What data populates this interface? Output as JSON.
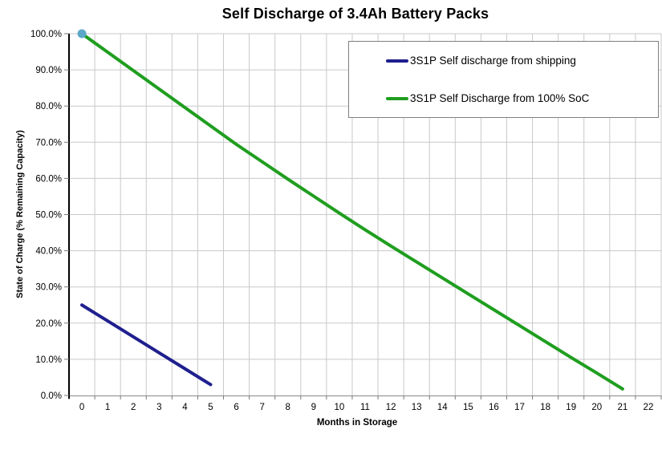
{
  "chart_data": {
    "type": "line",
    "title": "Self Discharge of 3.4Ah Battery Packs",
    "xlabel": "Months in Storage",
    "ylabel": "State of Charge (% Remaining Capacity)",
    "x_ticks": [
      0,
      1,
      2,
      3,
      4,
      5,
      6,
      7,
      8,
      9,
      10,
      11,
      12,
      13,
      14,
      15,
      16,
      17,
      18,
      19,
      20,
      21,
      22
    ],
    "ylim": [
      0,
      100
    ],
    "y_tick_step": 10,
    "y_tick_suffix": "%",
    "grid": true,
    "legend_position": "top-right",
    "series": [
      {
        "name": "3S1P Self discharge from shipping",
        "color": "#1f1f8f",
        "x": [
          0,
          1,
          2,
          3,
          4,
          5
        ],
        "values": [
          25,
          20.6,
          16.2,
          11.8,
          7.4,
          3
        ]
      },
      {
        "name": "3S1P Self Discharge from 100% SoC",
        "color": "#1f9e1f",
        "x": [
          0,
          1,
          2,
          3,
          4,
          5,
          6,
          7,
          8,
          9,
          10,
          11,
          12,
          13,
          14,
          15,
          16,
          17,
          18,
          19,
          20,
          21
        ],
        "values": [
          100,
          94.9,
          89.8,
          84.7,
          79.6,
          74.5,
          69.4,
          64.6,
          59.8,
          55.1,
          50.4,
          45.8,
          41.3,
          36.9,
          32.5,
          28.1,
          23.7,
          19.3,
          14.9,
          10.5,
          6.2,
          1.8
        ]
      }
    ],
    "marker": {
      "series": 1,
      "x": 0,
      "y": 100,
      "color": "#5ba8c9"
    },
    "style": {
      "gridline_color": "#c9c9c9",
      "x_axis_color": "#9a9a9a",
      "y_axis_color": "#000000",
      "tick_color": "#7a7a7a",
      "label_color": "#000000",
      "line_width": 4
    }
  }
}
